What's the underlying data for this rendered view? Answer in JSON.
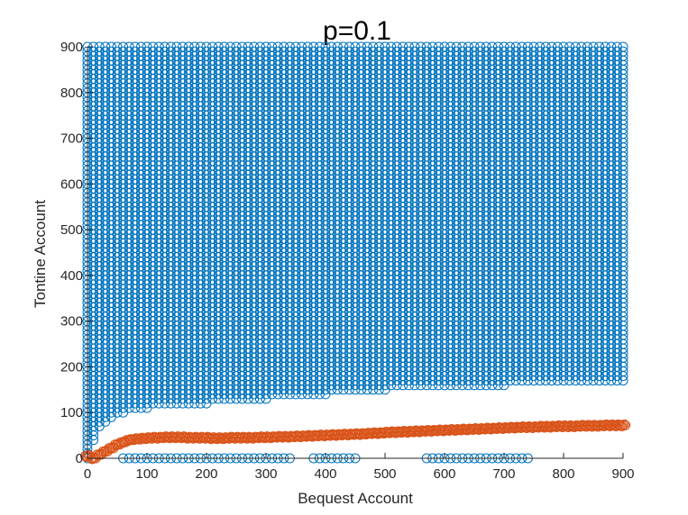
{
  "chart_data": {
    "type": "scatter",
    "title": "p=0.1",
    "xlabel": "Bequest Account",
    "ylabel": "Tontine Account",
    "xlim": [
      0,
      900
    ],
    "ylim": [
      0,
      900
    ],
    "x_ticks": [
      "0",
      "100",
      "200",
      "300",
      "400",
      "500",
      "600",
      "700",
      "800",
      "900"
    ],
    "y_ticks": [
      "0",
      "100",
      "200",
      "300",
      "400",
      "500",
      "600",
      "700",
      "800",
      "900"
    ],
    "grid": false,
    "legend": "none",
    "grid_step": 10,
    "series": [
      {
        "color": "#0072BD",
        "marker": "circle-open",
        "region": {
          "upper": 900,
          "lower_boundary": [
            [
              0,
              0
            ],
            [
              10,
              40
            ],
            [
              20,
              70
            ],
            [
              50,
              95
            ],
            [
              100,
              110
            ],
            [
              200,
              120
            ],
            [
              300,
              130
            ],
            [
              400,
              140
            ],
            [
              500,
              150
            ],
            [
              600,
              155
            ],
            [
              700,
              160
            ],
            [
              800,
              165
            ],
            [
              900,
              170
            ]
          ]
        },
        "zero_points": [
          [
            60,
            0
          ],
          [
            70,
            0
          ],
          [
            80,
            0
          ],
          [
            90,
            0
          ],
          [
            100,
            0
          ],
          [
            110,
            0
          ],
          [
            120,
            0
          ],
          [
            130,
            0
          ],
          [
            140,
            0
          ],
          [
            150,
            0
          ],
          [
            160,
            0
          ],
          [
            170,
            0
          ],
          [
            180,
            0
          ],
          [
            190,
            0
          ],
          [
            200,
            0
          ],
          [
            210,
            0
          ],
          [
            220,
            0
          ],
          [
            230,
            0
          ],
          [
            240,
            0
          ],
          [
            250,
            0
          ],
          [
            260,
            0
          ],
          [
            270,
            0
          ],
          [
            280,
            0
          ],
          [
            290,
            0
          ],
          [
            300,
            0
          ],
          [
            310,
            0
          ],
          [
            320,
            0
          ],
          [
            330,
            0
          ],
          [
            340,
            0
          ],
          [
            380,
            0
          ],
          [
            390,
            0
          ],
          [
            400,
            0
          ],
          [
            410,
            0
          ],
          [
            420,
            0
          ],
          [
            430,
            0
          ],
          [
            440,
            0
          ],
          [
            450,
            0
          ],
          [
            570,
            0
          ],
          [
            580,
            0
          ],
          [
            590,
            0
          ],
          [
            600,
            0
          ],
          [
            610,
            0
          ],
          [
            620,
            0
          ],
          [
            630,
            0
          ],
          [
            640,
            0
          ],
          [
            650,
            0
          ],
          [
            660,
            0
          ],
          [
            670,
            0
          ],
          [
            680,
            0
          ],
          [
            690,
            0
          ],
          [
            700,
            0
          ],
          [
            710,
            0
          ],
          [
            720,
            0
          ],
          [
            730,
            0
          ],
          [
            740,
            0
          ]
        ]
      },
      {
        "color": "#D95319",
        "marker": "circle-open",
        "points": [
          [
            0,
            5
          ],
          [
            10,
            0
          ],
          [
            20,
            8
          ],
          [
            30,
            15
          ],
          [
            40,
            22
          ],
          [
            50,
            30
          ],
          [
            60,
            35
          ],
          [
            70,
            40
          ],
          [
            80,
            42
          ],
          [
            90,
            43
          ],
          [
            100,
            44
          ],
          [
            110,
            45
          ],
          [
            120,
            45
          ],
          [
            130,
            46
          ],
          [
            140,
            46
          ],
          [
            150,
            46
          ],
          [
            160,
            46
          ],
          [
            170,
            45
          ],
          [
            180,
            45
          ],
          [
            190,
            45
          ],
          [
            200,
            45
          ],
          [
            210,
            44
          ],
          [
            220,
            44
          ],
          [
            230,
            44
          ],
          [
            240,
            45
          ],
          [
            250,
            45
          ],
          [
            260,
            45
          ],
          [
            270,
            45
          ],
          [
            280,
            45
          ],
          [
            290,
            46
          ],
          [
            300,
            46
          ],
          [
            310,
            46
          ],
          [
            320,
            47
          ],
          [
            330,
            47
          ],
          [
            340,
            47
          ],
          [
            350,
            48
          ],
          [
            360,
            48
          ],
          [
            370,
            49
          ],
          [
            380,
            49
          ],
          [
            390,
            50
          ],
          [
            400,
            50
          ],
          [
            410,
            51
          ],
          [
            420,
            51
          ],
          [
            430,
            52
          ],
          [
            440,
            52
          ],
          [
            450,
            53
          ],
          [
            460,
            53
          ],
          [
            470,
            54
          ],
          [
            480,
            55
          ],
          [
            490,
            55
          ],
          [
            500,
            56
          ],
          [
            510,
            57
          ],
          [
            520,
            57
          ],
          [
            530,
            58
          ],
          [
            540,
            58
          ],
          [
            550,
            59
          ],
          [
            560,
            59
          ],
          [
            570,
            60
          ],
          [
            580,
            60
          ],
          [
            590,
            61
          ],
          [
            600,
            61
          ],
          [
            610,
            62
          ],
          [
            620,
            62
          ],
          [
            630,
            63
          ],
          [
            640,
            63
          ],
          [
            650,
            64
          ],
          [
            660,
            64
          ],
          [
            670,
            65
          ],
          [
            680,
            65
          ],
          [
            690,
            66
          ],
          [
            700,
            66
          ],
          [
            710,
            67
          ],
          [
            720,
            67
          ],
          [
            730,
            68
          ],
          [
            740,
            68
          ],
          [
            750,
            68
          ],
          [
            760,
            69
          ],
          [
            770,
            69
          ],
          [
            780,
            69
          ],
          [
            790,
            70
          ],
          [
            800,
            70
          ],
          [
            810,
            70
          ],
          [
            820,
            70
          ],
          [
            830,
            71
          ],
          [
            840,
            71
          ],
          [
            850,
            71
          ],
          [
            860,
            71
          ],
          [
            870,
            72
          ],
          [
            880,
            72
          ],
          [
            890,
            72
          ],
          [
            900,
            72
          ]
        ]
      }
    ]
  }
}
